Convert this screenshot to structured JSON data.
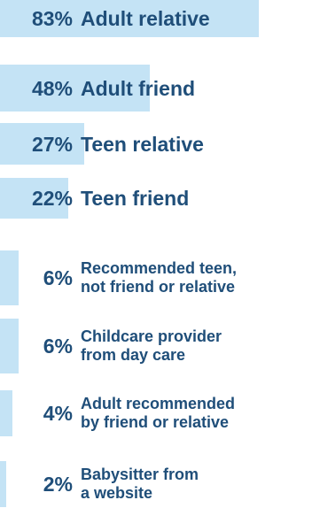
{
  "chart_data": {
    "type": "bar",
    "orientation": "horizontal",
    "categories": [
      "Adult relative",
      "Adult friend",
      "Teen relative",
      "Teen friend",
      "Recommended teen, not friend or relative",
      "Childcare provider from day care",
      "Adult recommended by friend or relative",
      "Babysitter from a website"
    ],
    "label_lines": [
      [
        "Adult relative"
      ],
      [
        "Adult friend"
      ],
      [
        "Teen relative"
      ],
      [
        "Teen friend"
      ],
      [
        "Recommended teen,",
        "not friend or relative"
      ],
      [
        "Childcare provider",
        "from day care"
      ],
      [
        "Adult recommended",
        "by friend or relative"
      ],
      [
        "Babysitter from",
        "a website"
      ]
    ],
    "values": [
      83,
      48,
      27,
      22,
      6,
      6,
      4,
      2
    ],
    "value_labels": [
      "83%",
      "48%",
      "27%",
      "22%",
      "6%",
      "6%",
      "4%",
      "2%"
    ],
    "xlim": [
      0,
      100
    ],
    "bar_color": "#c4e3f5",
    "text_color": "#1f4e79"
  }
}
